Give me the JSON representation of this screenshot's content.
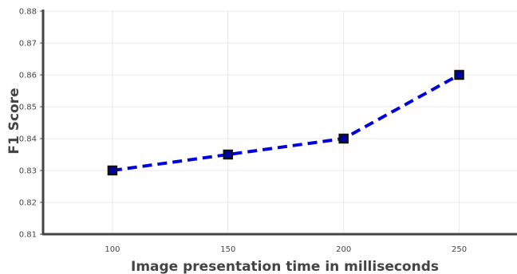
{
  "chart_data": {
    "type": "line",
    "xlabel": "Image presentation time in milliseconds",
    "ylabel": "F1 Score",
    "x": [
      100,
      150,
      200,
      250
    ],
    "series": [
      {
        "values": [
          0.83,
          0.835,
          0.84,
          0.86
        ],
        "line_color": "#0000dd",
        "line_style": "dashed",
        "marker": "square",
        "marker_fill": "#0000aa",
        "marker_edge": "#111111"
      }
    ],
    "xlim": [
      70,
      275
    ],
    "ylim": [
      0.81,
      0.88
    ],
    "xticks": [
      100,
      150,
      200,
      250
    ],
    "xtick_labels": [
      "100",
      "150",
      "200",
      "250"
    ],
    "yticks": [
      0.81,
      0.82,
      0.83,
      0.84,
      0.85,
      0.86,
      0.87,
      0.88
    ],
    "ytick_labels": [
      "0.81",
      "0.82",
      "0.83",
      "0.84",
      "0.85",
      "0.86",
      "0.87",
      "0.88"
    ],
    "grid": true,
    "colors": {
      "axis": "#444444",
      "grid": "#e8e8e8"
    }
  }
}
